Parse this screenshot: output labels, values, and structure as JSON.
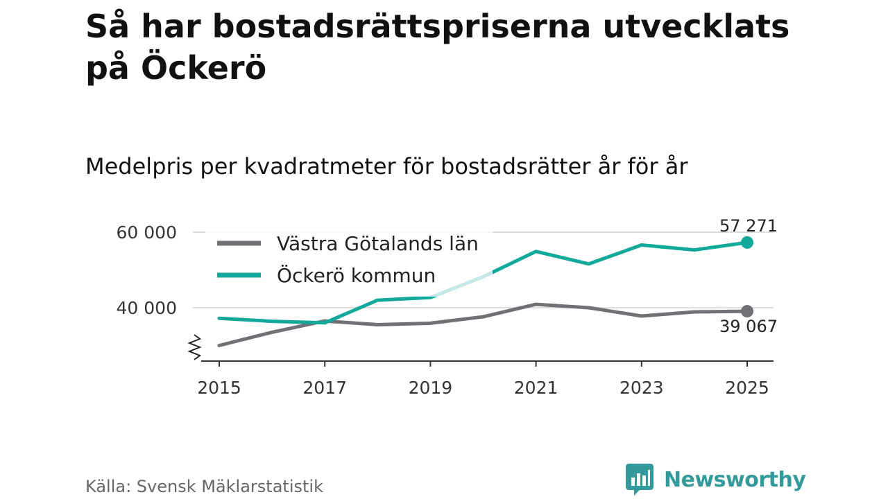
{
  "header": {
    "title": "Så har bostadsrättspriserna utvecklats på Öckerö",
    "subtitle": "Medelpris per kvadratmeter för bostadsrätter år för år"
  },
  "footer": {
    "source": "Källa: Svensk Mäklarstatistik",
    "brand": "Newsworthy",
    "brand_color": "#33999a"
  },
  "chart_data": {
    "type": "line",
    "title": "Medelpris per kvadratmeter för bostadsrätter år för år",
    "xlabel": "",
    "ylabel": "",
    "x": [
      2015,
      2016,
      2017,
      2018,
      2019,
      2020,
      2021,
      2022,
      2023,
      2024,
      2025
    ],
    "xticks": [
      2015,
      2017,
      2019,
      2021,
      2023,
      2025
    ],
    "yticks": [
      40000,
      60000
    ],
    "ytick_labels": [
      "40 000",
      "60 000"
    ],
    "ylim": [
      26000,
      62000
    ],
    "y_axis_break": true,
    "grid": true,
    "legend_position": "top-left",
    "series": [
      {
        "name": "Västra Götalands län",
        "color": "#707077",
        "values": [
          30000,
          33500,
          36500,
          35500,
          35900,
          37600,
          40900,
          40000,
          37800,
          38900,
          39067
        ],
        "end_label": "39 067"
      },
      {
        "name": "Öckerö kommun",
        "color": "#12a89a",
        "values": [
          37200,
          36400,
          36000,
          42000,
          42700,
          48200,
          54900,
          51600,
          56600,
          55300,
          57271
        ],
        "end_label": "57 271"
      }
    ]
  }
}
